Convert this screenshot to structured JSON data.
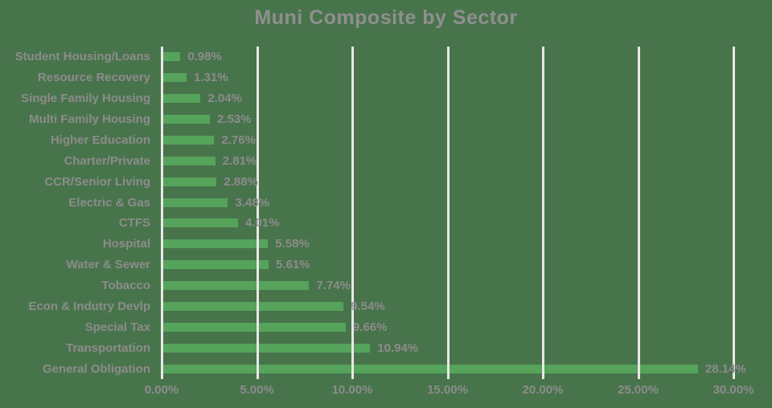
{
  "title": "Muni Composite by Sector",
  "colors": {
    "background": "#48744B",
    "bar": "#56A35C",
    "grid": "#E8E8E6",
    "text": "#8C8C8C",
    "title_text": "#8F8F8F"
  },
  "chart_data": {
    "type": "bar",
    "orientation": "horizontal",
    "title": "Muni Composite by Sector",
    "categories": [
      "Student Housing/Loans",
      "Resource Recovery",
      "Single Family Housing",
      "Multi Family Housing",
      "Higher Education",
      "Charter/Private",
      "CCR/Senior Living",
      "Electric & Gas",
      "CTFS",
      "Hospital",
      "Water & Sewer",
      "Tobacco",
      "Econ & Indutry Devlp",
      "Special Tax",
      "Transportation",
      "General Obligation"
    ],
    "values": [
      0.98,
      1.31,
      2.04,
      2.53,
      2.76,
      2.81,
      2.88,
      3.48,
      4.01,
      5.58,
      5.61,
      7.74,
      9.54,
      9.66,
      10.94,
      28.14
    ],
    "value_labels": [
      "0.98%",
      "1.31%",
      "2.04%",
      "2.53%",
      "2.76%",
      "2.81%",
      "2.88%",
      "3.48%",
      "4.01%",
      "5.58%",
      "5.61%",
      "7.74%",
      "9.54%",
      "9.66%",
      "10.94%",
      "28.14%"
    ],
    "x_ticks": [
      "0.00%",
      "5.00%",
      "10.00%",
      "15.00%",
      "20.00%",
      "25.00%",
      "30.00%"
    ],
    "xlabel": "",
    "ylabel": "",
    "xlim": [
      0,
      30
    ],
    "grid": "vertical, drawn over bars",
    "legend": "none"
  }
}
